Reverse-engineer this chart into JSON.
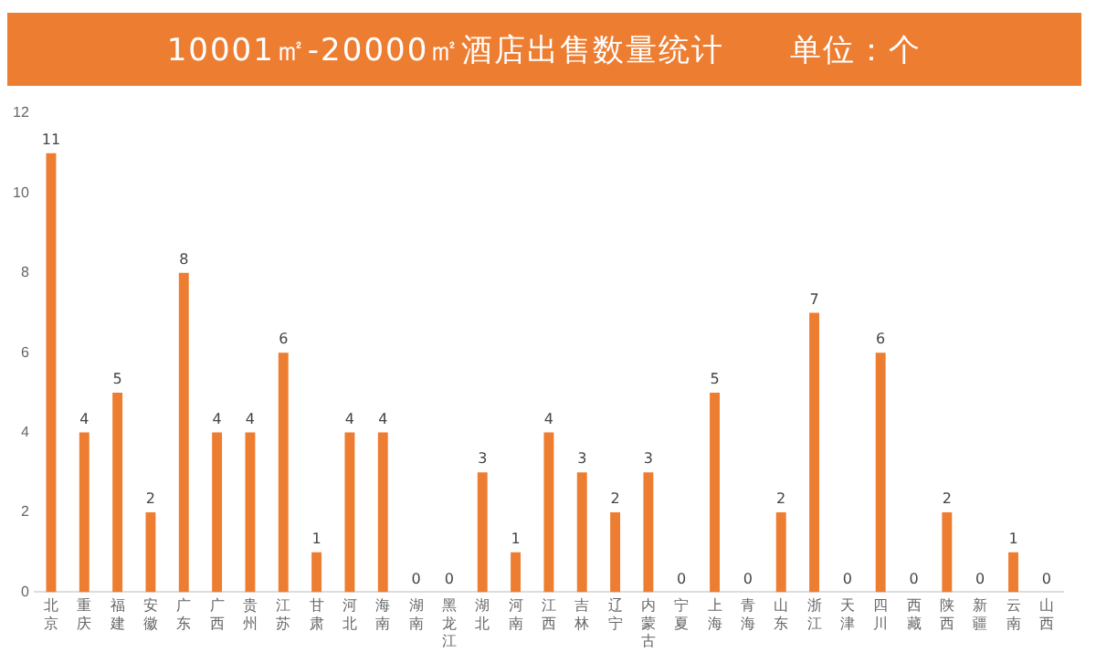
{
  "chart_data": {
    "type": "bar",
    "title": "10001㎡-20000㎡酒店出售数量统计",
    "subtitle": "单位：个",
    "categories": [
      "北京",
      "重庆",
      "福建",
      "安徽",
      "广东",
      "广西",
      "贵州",
      "江苏",
      "甘肃",
      "河北",
      "海南",
      "湖南",
      "黑龙江",
      "湖北",
      "河南",
      "江西",
      "吉林",
      "辽宁",
      "内蒙古",
      "宁夏",
      "上海",
      "青海",
      "山东",
      "浙江",
      "天津",
      "四川",
      "西藏",
      "陕西",
      "新疆",
      "云南",
      "山西"
    ],
    "values": [
      11,
      4,
      5,
      2,
      8,
      4,
      4,
      6,
      1,
      4,
      4,
      0,
      0,
      3,
      1,
      4,
      3,
      2,
      3,
      0,
      5,
      0,
      2,
      7,
      0,
      6,
      0,
      2,
      0,
      1,
      0
    ],
    "color": "#ed7d31",
    "ylim": [
      0,
      12
    ],
    "yticks": [
      0,
      2,
      4,
      6,
      8,
      10,
      12
    ],
    "data_labels": true,
    "grid": false
  }
}
